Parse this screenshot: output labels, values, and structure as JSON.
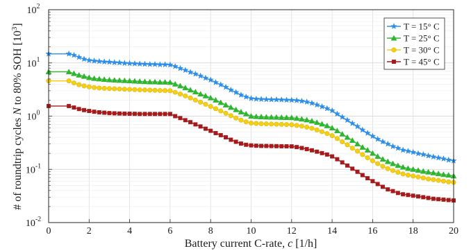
{
  "chart_data": {
    "type": "line",
    "title": "",
    "xlabel_main": "Battery current C-rate,",
    "xlabel_var": "c",
    "xlabel_unit": "[1/h]",
    "ylabel_pre": "# of roundtrip cycles",
    "ylabel_var": "N",
    "ylabel_post": "to 80% SOH",
    "ylabel_unit_base": "[10",
    "ylabel_unit_exp": "3",
    "ylabel_unit_close": "]",
    "y_scale": "log",
    "xlim": [
      0,
      20
    ],
    "ylim": [
      0.01,
      100
    ],
    "grid": true,
    "legend_position": "top-right",
    "x_ticks": [
      "0",
      "2",
      "4",
      "6",
      "8",
      "10",
      "12",
      "14",
      "16",
      "18",
      "20"
    ],
    "y_ticks": [
      {
        "base": "10",
        "exp": "-2"
      },
      {
        "base": "10",
        "exp": "-1"
      },
      {
        "base": "10",
        "exp": "0"
      },
      {
        "base": "10",
        "exp": "1"
      },
      {
        "base": "10",
        "exp": "2"
      }
    ],
    "x": [
      0,
      1,
      1.25,
      1.5,
      1.75,
      2,
      2.25,
      2.5,
      2.75,
      3,
      3.25,
      3.5,
      3.75,
      4,
      4.25,
      4.5,
      4.75,
      5,
      5.25,
      5.5,
      5.75,
      6,
      6.25,
      6.5,
      6.75,
      7,
      7.25,
      7.5,
      7.75,
      8,
      8.25,
      8.5,
      8.75,
      9,
      9.25,
      9.5,
      9.75,
      10,
      10.25,
      10.5,
      10.75,
      11,
      11.25,
      11.5,
      11.75,
      12,
      12.25,
      12.5,
      12.75,
      13,
      13.25,
      13.5,
      13.75,
      14,
      14.25,
      14.5,
      14.75,
      15,
      15.25,
      15.5,
      15.75,
      16,
      16.25,
      16.5,
      16.75,
      17,
      17.25,
      17.5,
      17.75,
      18,
      18.25,
      18.5,
      18.75,
      19,
      19.25,
      19.5,
      19.75,
      20
    ],
    "series": [
      {
        "name": "T = 15° C",
        "color": "#2e8fe8",
        "marker": "star",
        "values": [
          14.8,
          14.8,
          14.0,
          12.8,
          11.8,
          11.2,
          10.9,
          10.7,
          10.5,
          10.4,
          10.2,
          10.1,
          9.9,
          9.8,
          9.7,
          9.6,
          9.5,
          9.4,
          9.4,
          9.3,
          9.3,
          9.2,
          8.6,
          7.9,
          7.3,
          6.7,
          6.2,
          5.7,
          5.2,
          4.8,
          4.3,
          3.9,
          3.5,
          3.1,
          2.8,
          2.5,
          2.3,
          2.15,
          2.1,
          2.08,
          2.06,
          2.05,
          2.04,
          2.03,
          2.01,
          2.0,
          1.97,
          1.92,
          1.85,
          1.75,
          1.63,
          1.51,
          1.39,
          1.27,
          1.1,
          0.96,
          0.84,
          0.73,
          0.64,
          0.55,
          0.48,
          0.42,
          0.37,
          0.33,
          0.3,
          0.27,
          0.25,
          0.23,
          0.22,
          0.21,
          0.198,
          0.19,
          0.18,
          0.172,
          0.165,
          0.158,
          0.15,
          0.145
        ]
      },
      {
        "name": "T = 25° C",
        "color": "#2fb52f",
        "marker": "triangle",
        "values": [
          6.8,
          6.8,
          6.3,
          5.9,
          5.6,
          5.3,
          5.1,
          5.0,
          4.9,
          4.8,
          4.75,
          4.7,
          4.65,
          4.6,
          4.55,
          4.5,
          4.45,
          4.4,
          4.4,
          4.35,
          4.35,
          4.3,
          4.0,
          3.7,
          3.4,
          3.1,
          2.85,
          2.6,
          2.4,
          2.2,
          2.0,
          1.8,
          1.62,
          1.46,
          1.32,
          1.2,
          1.1,
          1.0,
          0.98,
          0.97,
          0.96,
          0.955,
          0.95,
          0.945,
          0.94,
          0.935,
          0.91,
          0.88,
          0.85,
          0.81,
          0.76,
          0.71,
          0.66,
          0.6,
          0.53,
          0.46,
          0.4,
          0.35,
          0.3,
          0.26,
          0.23,
          0.2,
          0.175,
          0.155,
          0.14,
          0.128,
          0.118,
          0.11,
          0.104,
          0.1,
          0.096,
          0.092,
          0.089,
          0.086,
          0.083,
          0.08,
          0.078,
          0.075
        ]
      },
      {
        "name": "T = 30° C",
        "color": "#f3cf16",
        "marker": "circle",
        "values": [
          4.6,
          4.6,
          4.2,
          3.9,
          3.7,
          3.55,
          3.45,
          3.38,
          3.33,
          3.3,
          3.27,
          3.24,
          3.21,
          3.18,
          3.15,
          3.12,
          3.1,
          3.08,
          3.06,
          3.04,
          3.02,
          3.0,
          2.8,
          2.6,
          2.4,
          2.2,
          2.0,
          1.83,
          1.67,
          1.52,
          1.38,
          1.25,
          1.13,
          1.02,
          0.92,
          0.84,
          0.78,
          0.74,
          0.73,
          0.72,
          0.715,
          0.71,
          0.705,
          0.7,
          0.695,
          0.69,
          0.67,
          0.65,
          0.62,
          0.59,
          0.55,
          0.51,
          0.47,
          0.43,
          0.38,
          0.33,
          0.29,
          0.25,
          0.22,
          0.19,
          0.165,
          0.145,
          0.128,
          0.114,
          0.103,
          0.095,
          0.088,
          0.082,
          0.078,
          0.075,
          0.072,
          0.069,
          0.066,
          0.064,
          0.062,
          0.06,
          0.058,
          0.057
        ]
      },
      {
        "name": "T = 45° C",
        "color": "#a51b1b",
        "marker": "square",
        "values": [
          1.55,
          1.55,
          1.45,
          1.36,
          1.3,
          1.25,
          1.21,
          1.18,
          1.16,
          1.14,
          1.13,
          1.12,
          1.115,
          1.11,
          1.105,
          1.1,
          1.1,
          1.1,
          1.1,
          1.1,
          1.1,
          1.1,
          1.0,
          0.92,
          0.84,
          0.77,
          0.7,
          0.64,
          0.58,
          0.53,
          0.48,
          0.44,
          0.4,
          0.36,
          0.33,
          0.305,
          0.29,
          0.282,
          0.278,
          0.276,
          0.275,
          0.274,
          0.273,
          0.272,
          0.271,
          0.27,
          0.262,
          0.252,
          0.24,
          0.228,
          0.215,
          0.202,
          0.19,
          0.175,
          0.155,
          0.135,
          0.118,
          0.103,
          0.09,
          0.078,
          0.068,
          0.06,
          0.053,
          0.047,
          0.042,
          0.039,
          0.036,
          0.034,
          0.033,
          0.032,
          0.031,
          0.03,
          0.029,
          0.028,
          0.0275,
          0.027,
          0.0265,
          0.026
        ]
      }
    ]
  }
}
